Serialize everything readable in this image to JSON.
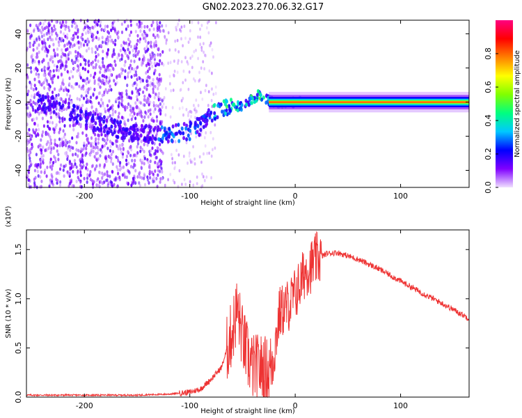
{
  "title": "GN02.2023.270.06.32.G17",
  "chart_data": [
    {
      "type": "heatmap",
      "xlabel": "Height of straight line (km)",
      "ylabel": "Frequency (Hz)",
      "xlim": [
        -255,
        165
      ],
      "ylim": [
        -50,
        48
      ],
      "xticks": [
        -200,
        -100,
        0,
        100
      ],
      "yticks": [
        -40,
        -20,
        0,
        20,
        40
      ],
      "colorbar": {
        "label": "Normalized spectral amplitude",
        "range": [
          0.0,
          1.0
        ],
        "ticks": [
          0.0,
          0.2,
          0.4,
          0.6,
          0.8
        ],
        "tick_labels": [
          "0.0",
          "0.2",
          "0.4",
          "0.6",
          "0.8"
        ],
        "colormap": [
          "#f0e0ff",
          "#8000ff",
          "#0000ff",
          "#00c8ff",
          "#00ff80",
          "#80ff00",
          "#ffff00",
          "#ff8000",
          "#ff0000",
          "#ff0080"
        ]
      },
      "frequency_track": [
        {
          "x": -245,
          "y": 0
        },
        {
          "x": -220,
          "y": -3
        },
        {
          "x": -200,
          "y": -10
        },
        {
          "x": -180,
          "y": -14
        },
        {
          "x": -160,
          "y": -17
        },
        {
          "x": -140,
          "y": -19
        },
        {
          "x": -120,
          "y": -19
        },
        {
          "x": -110,
          "y": -18
        },
        {
          "x": -100,
          "y": -17
        },
        {
          "x": -90,
          "y": -14
        },
        {
          "x": -80,
          "y": -7
        },
        {
          "x": -70,
          "y": -4
        },
        {
          "x": -60,
          "y": -3
        },
        {
          "x": -50,
          "y": -2
        },
        {
          "x": -40,
          "y": 2
        },
        {
          "x": -35,
          "y": 4
        },
        {
          "x": -30,
          "y": 2
        },
        {
          "x": -20,
          "y": 0
        },
        {
          "x": -10,
          "y": -1
        },
        {
          "x": 0,
          "y": 0
        },
        {
          "x": 160,
          "y": 0
        }
      ]
    },
    {
      "type": "line",
      "xlabel": "Height of straight line (km)",
      "ylabel": "SNR (10 * v/v)",
      "yscale_label": "(x10⁴)",
      "xlim": [
        -255,
        165
      ],
      "ylim": [
        0.0,
        1.7
      ],
      "xticks": [
        -200,
        -100,
        0,
        100
      ],
      "yticks": [
        0.0,
        0.5,
        1.0,
        1.5
      ],
      "ytick_labels": [
        "0.0",
        "0.5",
        "1.0",
        "1.5"
      ],
      "color": "#ee3333",
      "series": [
        {
          "x": [
            -255,
            -150,
            -120,
            -100,
            -90,
            -80,
            -70,
            -60,
            -55,
            -50,
            -45,
            -40,
            -35,
            -30,
            -25,
            -20,
            -15,
            -10,
            -5,
            0,
            5,
            10,
            15,
            20,
            30,
            40,
            60,
            80,
            100,
            120,
            140,
            165
          ],
          "y": [
            0.02,
            0.02,
            0.03,
            0.05,
            0.08,
            0.18,
            0.3,
            0.65,
            0.9,
            0.6,
            0.4,
            0.3,
            0.3,
            0.3,
            0.25,
            0.45,
            0.85,
            0.9,
            0.95,
            1.05,
            1.15,
            1.3,
            1.33,
            1.4,
            1.46,
            1.47,
            1.4,
            1.3,
            1.18,
            1.06,
            0.95,
            0.8
          ]
        }
      ]
    }
  ]
}
